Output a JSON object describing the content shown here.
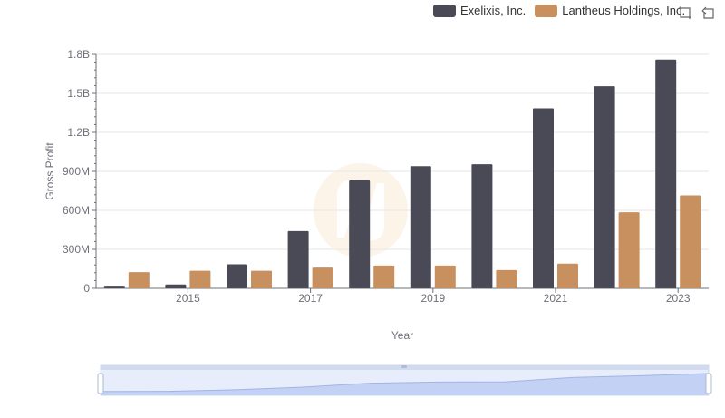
{
  "legend": [
    {
      "name": "Exelixis, Inc.",
      "color": "#4a4a57"
    },
    {
      "name": "Lantheus Holdings, Inc.",
      "color": "#c8905e"
    }
  ],
  "toolbox": {
    "zoom_icon": "zoom-select-icon",
    "reset_icon": "restore-icon"
  },
  "chart_data": {
    "type": "bar",
    "categories": [
      "2014",
      "2015",
      "2016",
      "2017",
      "2018",
      "2019",
      "2020",
      "2021",
      "2022",
      "2023"
    ],
    "x_tick_labels": [
      "2015",
      "2017",
      "2019",
      "2021",
      "2023"
    ],
    "series": [
      {
        "name": "Exelixis, Inc.",
        "color": "#4a4a57",
        "values": [
          20000000,
          30000000,
          185000000,
          440000000,
          830000000,
          940000000,
          955000000,
          1385000000,
          1555000000,
          1760000000
        ]
      },
      {
        "name": "Lantheus Holdings, Inc.",
        "color": "#c8905e",
        "values": [
          125000000,
          135000000,
          135000000,
          160000000,
          175000000,
          175000000,
          140000000,
          190000000,
          585000000,
          715000000
        ]
      }
    ],
    "y_ticks": [
      {
        "value": 0,
        "label": "0"
      },
      {
        "value": 300000000,
        "label": "300M"
      },
      {
        "value": 600000000,
        "label": "600M"
      },
      {
        "value": 900000000,
        "label": "900M"
      },
      {
        "value": 1200000000,
        "label": "1.2B"
      },
      {
        "value": 1500000000,
        "label": "1.5B"
      },
      {
        "value": 1800000000,
        "label": "1.8B"
      }
    ],
    "ylim": [
      0,
      1800000000
    ],
    "xlabel": "Year",
    "ylabel": "Gross Profit",
    "legend_position": "top-right",
    "grid": true,
    "data_zoom": {
      "start": 0,
      "end": 100
    }
  }
}
